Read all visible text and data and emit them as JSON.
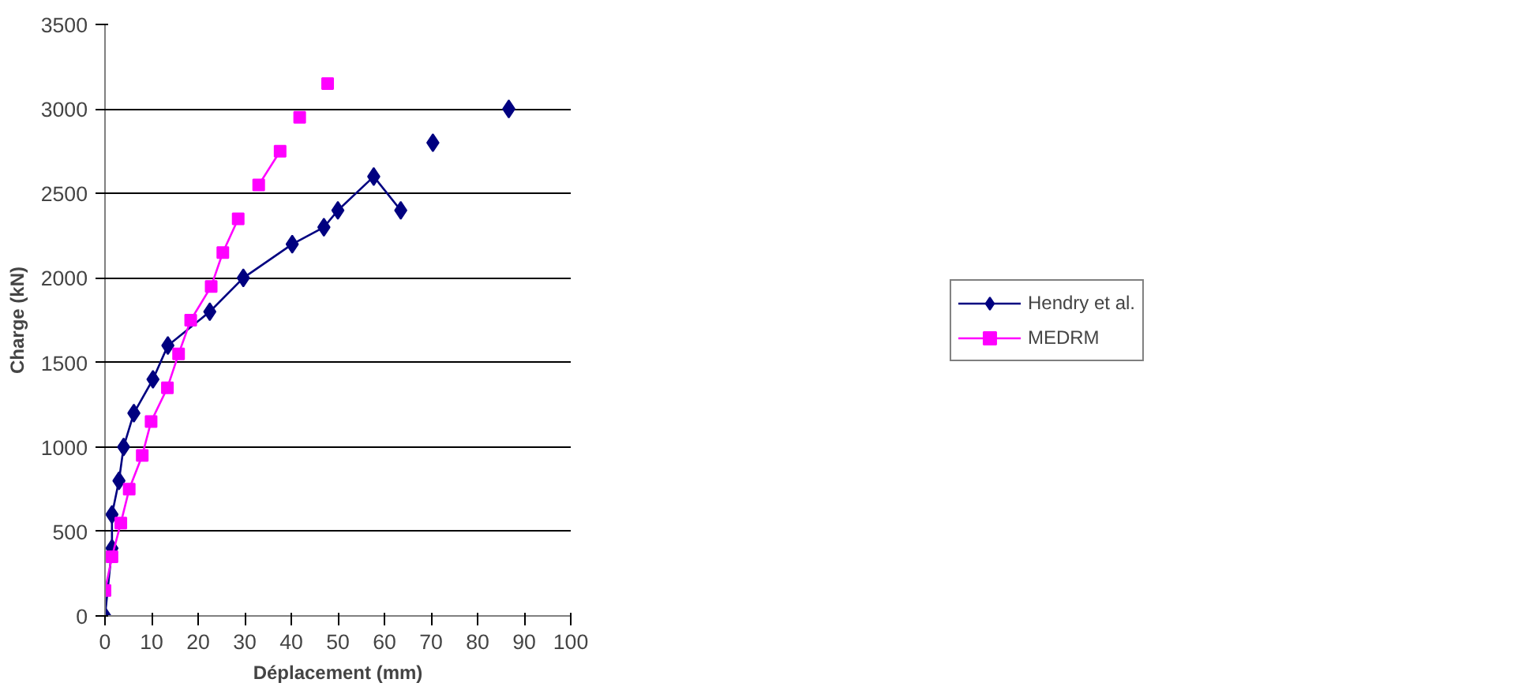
{
  "chart_data": {
    "type": "line",
    "xlabel": "Déplacement (mm)",
    "ylabel": "Charge (kN)",
    "xlim": [
      0,
      100
    ],
    "ylim": [
      0,
      3500
    ],
    "xticks": [
      0,
      10,
      20,
      30,
      40,
      50,
      60,
      70,
      80,
      90,
      100
    ],
    "yticks": [
      0,
      500,
      1000,
      1500,
      2000,
      2500,
      3000,
      3500
    ],
    "grid": "y",
    "legend": "right",
    "line_style": "solid",
    "series": [
      {
        "name": "Hendry et al.",
        "color": "#000080",
        "marker": "diamond",
        "x": [
          0,
          1.5,
          1.5,
          3,
          4,
          6.2,
          10.3,
          13.5,
          22.5,
          29.7,
          40.2,
          47,
          50,
          57.7,
          63.5,
          67,
          70.4,
          78,
          86.7
        ],
        "values": [
          0,
          400,
          600,
          800,
          1000,
          1200,
          1400,
          1600,
          1800,
          2000,
          2200,
          2300,
          2400,
          2600,
          2400,
          null,
          2800,
          null,
          3000
        ]
      },
      {
        "name": "MEDRM",
        "color": "#ff00ff",
        "marker": "square",
        "x": [
          0,
          1.5,
          3.4,
          5.2,
          8,
          9.9,
          13.4,
          15.8,
          18.4,
          22.8,
          25.3,
          28.6,
          31,
          33,
          37.6,
          40,
          41.8,
          45,
          47.8
        ],
        "values": [
          150,
          350,
          550,
          750,
          950,
          1150,
          1350,
          1550,
          1750,
          1950,
          2150,
          2350,
          null,
          2550,
          2750,
          null,
          2950,
          null,
          3150
        ]
      }
    ]
  }
}
